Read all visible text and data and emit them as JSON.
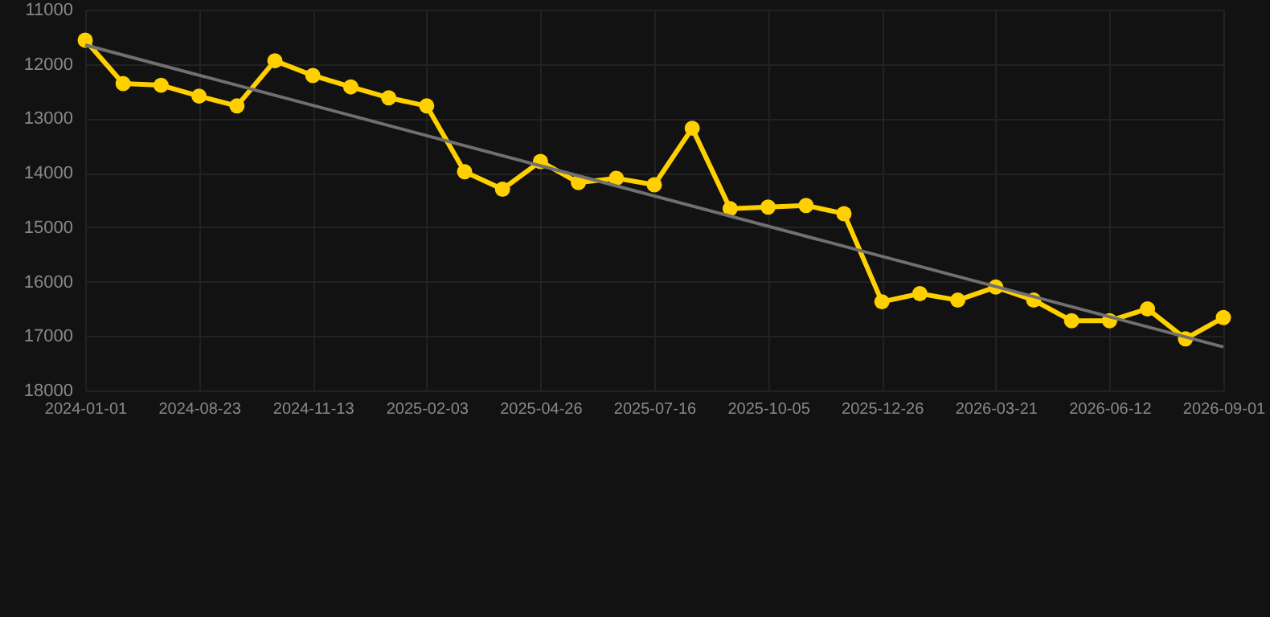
{
  "chart_data": {
    "type": "line",
    "categories": [
      "2024-01-01",
      null,
      null,
      "2024-08-23",
      null,
      null,
      "2024-11-13",
      null,
      null,
      "2025-02-03",
      null,
      null,
      "2025-04-26",
      null,
      null,
      "2025-07-16",
      null,
      null,
      "2025-10-05",
      null,
      null,
      "2025-12-26",
      null,
      null,
      "2026-03-21",
      null,
      null,
      "2026-06-12",
      null,
      null,
      "2026-09-01"
    ],
    "series": [
      {
        "color": "#ffd000",
        "values": [
          11560,
          12360,
          12390,
          12590,
          12770,
          11940,
          12210,
          12420,
          12620,
          12770,
          13980,
          14300,
          13790,
          14180,
          14100,
          14220,
          13180,
          14660,
          14630,
          14600,
          14750,
          16370,
          16220,
          16340,
          16100,
          16340,
          16720,
          16720,
          16500,
          17050,
          16660
        ]
      },
      {
        "type": "line",
        "color": "#707070",
        "marker": "none",
        "values": [
          11650,
          null,
          null,
          null,
          null,
          null,
          null,
          null,
          null,
          null,
          null,
          null,
          null,
          null,
          null,
          null,
          null,
          null,
          null,
          null,
          null,
          null,
          null,
          null,
          null,
          null,
          null,
          null,
          null,
          null,
          17200
        ]
      }
    ],
    "marker": "circle",
    "ylim": [
      18000,
      11000
    ],
    "yticks": [
      11000,
      12000,
      13000,
      14000,
      15000,
      16000,
      17000,
      18000
    ],
    "grid": true
  }
}
